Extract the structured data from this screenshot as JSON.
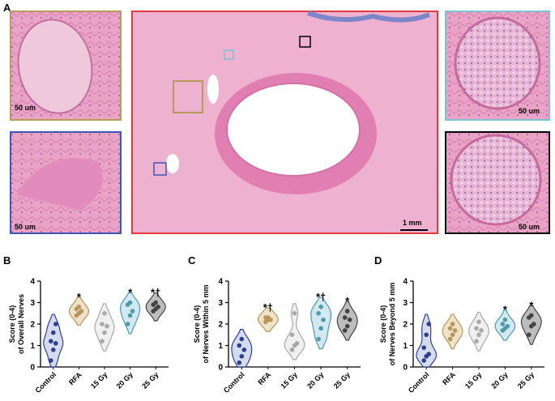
{
  "panel_a": {
    "label": "A",
    "scale_bars": [
      "50 um",
      "50 um",
      "50 um",
      "50 um",
      "1 mm"
    ]
  },
  "chart_data": [
    {
      "type": "violin",
      "label": "B",
      "ylabel": [
        "Score (0-4)",
        "of Overall Nerves"
      ],
      "categories": [
        "Control",
        "RFA",
        "15 Gy",
        "20 Gy",
        "25 Gy"
      ],
      "colors": [
        "#2d3f8f",
        "#b8955a",
        "#a8a8a8",
        "#4f9aad",
        "#444444"
      ],
      "fills": [
        "#d6dcf0",
        "#efe2c8",
        "#f0f0f0",
        "#d2e9ef",
        "#bdbdbd"
      ],
      "values": [
        [
          0.3,
          0.8,
          1.1,
          1.2,
          1.6,
          2.0
        ],
        [
          2.4,
          2.5,
          2.6,
          2.7,
          2.8
        ],
        [
          1.2,
          1.6,
          1.9,
          2.0,
          2.5
        ],
        [
          2.0,
          2.4,
          2.6,
          2.9,
          3.0
        ],
        [
          2.6,
          2.7,
          2.8,
          2.9,
          3.0
        ]
      ],
      "annotations": [
        null,
        "*",
        null,
        "*",
        "*†"
      ],
      "ylim": [
        0,
        4
      ],
      "yticks": [
        0,
        1,
        2,
        3,
        4
      ]
    },
    {
      "type": "violin",
      "label": "C",
      "ylabel": [
        "Score (0-4)",
        "of Nerves Within 5 mm"
      ],
      "categories": [
        "Control",
        "RFA",
        "15 Gy",
        "20 Gy",
        "25 Gy"
      ],
      "colors": [
        "#2d3f8f",
        "#b8955a",
        "#a8a8a8",
        "#4f9aad",
        "#444444"
      ],
      "fills": [
        "#d6dcf0",
        "#efe2c8",
        "#f0f0f0",
        "#d2e9ef",
        "#bdbdbd"
      ],
      "values": [
        [
          0.2,
          0.5,
          0.8,
          1.0,
          1.3
        ],
        [
          2.1,
          2.2,
          2.2,
          2.3,
          2.3
        ],
        [
          0.8,
          1.0,
          1.1,
          1.5,
          2.5
        ],
        [
          1.3,
          1.8,
          2.2,
          2.5,
          2.8
        ],
        [
          1.7,
          1.9,
          2.2,
          2.3,
          2.6
        ]
      ],
      "annotations": [
        null,
        "*†",
        null,
        "*†",
        "*"
      ],
      "ylim": [
        0,
        4
      ],
      "yticks": [
        0,
        1,
        2,
        3,
        4
      ]
    },
    {
      "type": "violin",
      "label": "D",
      "ylabel": [
        "Score (0-4)",
        "of Nerves Beyond 5 mm"
      ],
      "categories": [
        "Control",
        "RFA",
        "15 Gy",
        "20 Gy",
        "25 Gy"
      ],
      "colors": [
        "#2d3f8f",
        "#b8955a",
        "#a8a8a8",
        "#4f9aad",
        "#444444"
      ],
      "fills": [
        "#d6dcf0",
        "#efe2c8",
        "#f0f0f0",
        "#d2e9ef",
        "#bdbdbd"
      ],
      "values": [
        [
          0.3,
          0.5,
          0.6,
          0.9,
          1.5,
          2.0
        ],
        [
          1.3,
          1.5,
          1.7,
          1.8,
          2.0
        ],
        [
          1.2,
          1.5,
          1.7,
          1.8,
          2.1
        ],
        [
          1.7,
          1.8,
          1.9,
          2.0,
          2.2
        ],
        [
          1.5,
          1.9,
          2.0,
          2.3,
          2.4
        ]
      ],
      "annotations": [
        null,
        null,
        null,
        "*",
        "*"
      ],
      "ylim": [
        0,
        4
      ],
      "yticks": [
        0,
        1,
        2,
        3,
        4
      ]
    }
  ]
}
